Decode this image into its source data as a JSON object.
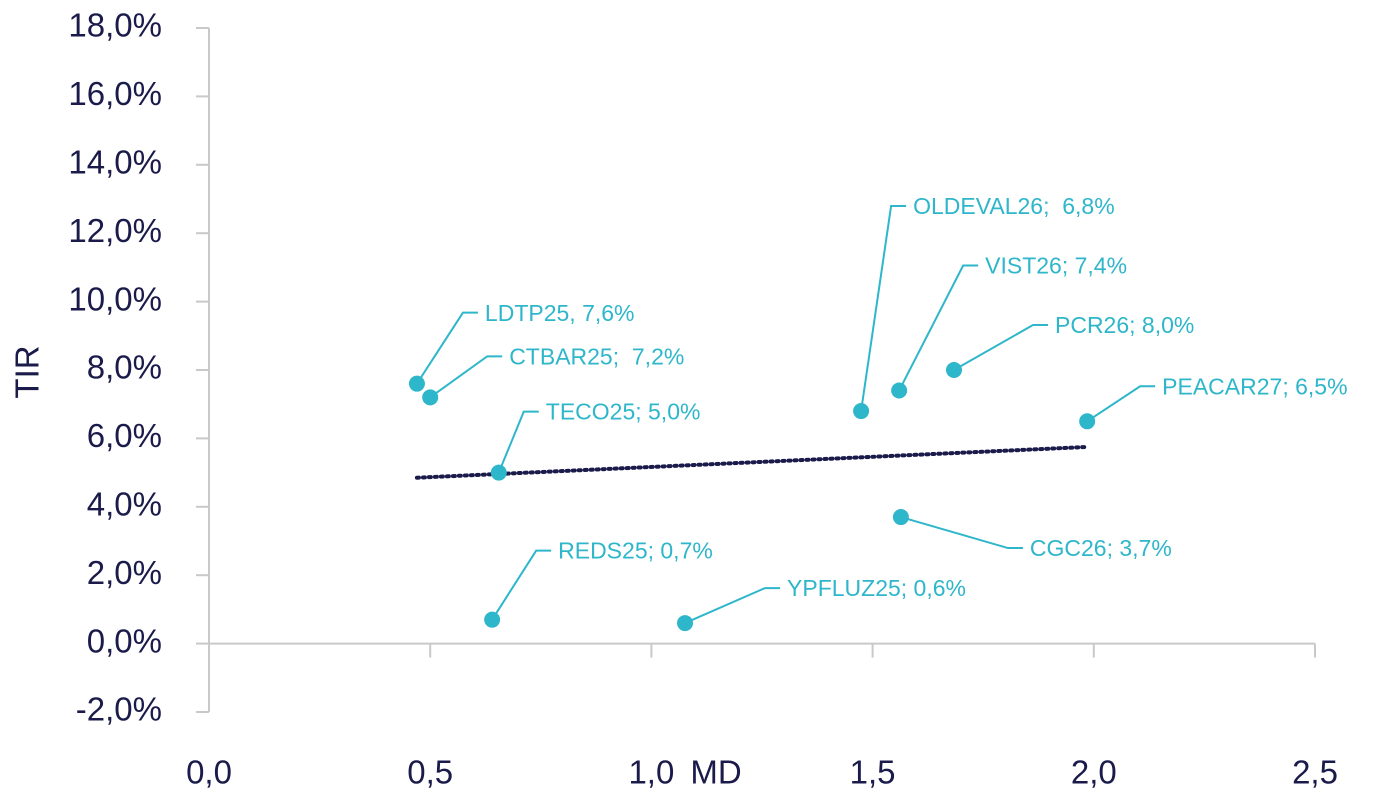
{
  "chart_data": {
    "type": "scatter",
    "x_label": "MD",
    "y_label": "TIR",
    "x": [
      0.47,
      0.5,
      0.655,
      0.64,
      1.076,
      1.474,
      1.56,
      1.684,
      1.564,
      1.985
    ],
    "values": [
      7.6,
      7.2,
      5.0,
      0.7,
      0.6,
      6.8,
      7.4,
      8.0,
      3.7,
      6.5
    ],
    "value_labels": [
      "LDTP25, 7,6%",
      "CTBAR25;  7,2%",
      "TECO25; 5,0%",
      "REDS25; 0,7%",
      "YPFLUZ25; 0,6%",
      "OLDEVAL26;  6,8%",
      "VIST26; 7,4%",
      "PCR26; 8,0%",
      "CGC26; 3,7%",
      "PEACAR27; 6,5%"
    ],
    "color": "#2eb6ca",
    "trendline": {
      "x": [
        0.47,
        1.985
      ],
      "values": [
        4.85,
        5.75
      ],
      "color": "#1b1b4b"
    },
    "xlim": [
      0,
      2.5
    ],
    "xticks": [
      {
        "value": 0,
        "label": "0,0"
      },
      {
        "value": 0.5,
        "label": "0,5"
      },
      {
        "value": 1.0,
        "label": "1,0"
      },
      {
        "value": 1.5,
        "label": "1,5"
      },
      {
        "value": 2.0,
        "label": "2,0"
      },
      {
        "value": 2.5,
        "label": "2,5"
      }
    ],
    "ylim": [
      -2,
      18
    ],
    "yticks": [
      {
        "value": -2,
        "label": "-2,0%"
      },
      {
        "value": 0,
        "label": "0,0%"
      },
      {
        "value": 2,
        "label": "2,0%"
      },
      {
        "value": 4,
        "label": "4,0%"
      },
      {
        "value": 6,
        "label": "6,0%"
      },
      {
        "value": 8,
        "label": "8,0%"
      },
      {
        "value": 10,
        "label": "10,0%"
      },
      {
        "value": 12,
        "label": "12,0%"
      },
      {
        "value": 14,
        "label": "14,0%"
      },
      {
        "value": 16,
        "label": "16,0%"
      },
      {
        "value": 18,
        "label": "18,0%"
      }
    ]
  }
}
